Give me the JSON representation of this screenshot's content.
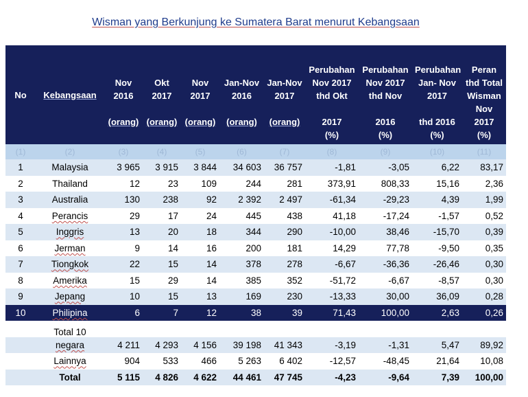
{
  "title": "Wisman yang Berkunjung ke Sumatera Barat menurut Kebangsaan",
  "headers": {
    "no": "No",
    "kebangsaan": "Kebangsaan",
    "nov2016": [
      "Nov",
      "2016",
      "(orang)"
    ],
    "okt2017": [
      "Okt",
      "2017",
      "(orang)"
    ],
    "nov2017": [
      "Nov",
      "2017",
      "(orang)"
    ],
    "jannov2016": [
      "Jan-Nov",
      "2016",
      "(orang)"
    ],
    "jannov2017": [
      "Jan-Nov",
      "2017",
      "(orang)"
    ],
    "chg_okt": [
      "Perubahan",
      "Nov 2017",
      "thd Okt",
      "2017",
      "(%)"
    ],
    "chg_nov": [
      "Perubahan",
      "Nov 2017",
      "thd Nov",
      "2016",
      "(%)"
    ],
    "chg_jannov": [
      "Perubahan",
      "Jan- Nov",
      "2017",
      "thd 2016",
      "(%)"
    ],
    "peran": [
      "Peran",
      "thd Total",
      "Wisman",
      "Nov",
      "2017",
      "(%)"
    ]
  },
  "codes": [
    "(1)",
    "(2)",
    "(3)",
    "(4)",
    "(5)",
    "(6)",
    "(7)",
    "(8)",
    "(9)",
    "(10)",
    "(11)"
  ],
  "rows": [
    {
      "no": "1",
      "name": "Malaysia",
      "nov16": "3 965",
      "okt17": "3 915",
      "nov17": "3 844",
      "jn16": "34 603",
      "jn17": "36 757",
      "c1": "-1,81",
      "c2": "-3,05",
      "c3": "6,22",
      "p": "83,17"
    },
    {
      "no": "2",
      "name": "Thailand",
      "nov16": "12",
      "okt17": "23",
      "nov17": "109",
      "jn16": "244",
      "jn17": "281",
      "c1": "373,91",
      "c2": "808,33",
      "c3": "15,16",
      "p": "2,36"
    },
    {
      "no": "3",
      "name": "Australia",
      "nov16": "130",
      "okt17": "238",
      "nov17": "92",
      "jn16": "2 392",
      "jn17": "2 497",
      "c1": "-61,34",
      "c2": "-29,23",
      "c3": "4,39",
      "p": "1,99"
    },
    {
      "no": "4",
      "name": "Perancis",
      "nov16": "29",
      "okt17": "17",
      "nov17": "24",
      "jn16": "445",
      "jn17": "438",
      "c1": "41,18",
      "c2": "-17,24",
      "c3": "-1,57",
      "p": "0,52"
    },
    {
      "no": "5",
      "name": "Inggris",
      "nov16": "13",
      "okt17": "20",
      "nov17": "18",
      "jn16": "344",
      "jn17": "290",
      "c1": "-10,00",
      "c2": "38,46",
      "c3": "-15,70",
      "p": "0,39"
    },
    {
      "no": "6",
      "name": "Jerman",
      "nov16": "9",
      "okt17": "14",
      "nov17": "16",
      "jn16": "200",
      "jn17": "181",
      "c1": "14,29",
      "c2": "77,78",
      "c3": "-9,50",
      "p": "0,35"
    },
    {
      "no": "7",
      "name": "Tiongkok",
      "nov16": "22",
      "okt17": "15",
      "nov17": "14",
      "jn16": "378",
      "jn17": "278",
      "c1": "-6,67",
      "c2": "-36,36",
      "c3": "-26,46",
      "p": "0,30"
    },
    {
      "no": "8",
      "name": "Amerika",
      "nov16": "15",
      "okt17": "29",
      "nov17": "14",
      "jn16": "385",
      "jn17": "352",
      "c1": "-51,72",
      "c2": "-6,67",
      "c3": "-8,57",
      "p": "0,30"
    },
    {
      "no": "9",
      "name": "Jepang",
      "nov16": "10",
      "okt17": "15",
      "nov17": "13",
      "jn16": "169",
      "jn17": "230",
      "c1": "-13,33",
      "c2": "30,00",
      "c3": "36,09",
      "p": "0,28"
    },
    {
      "no": "10",
      "name": "Philipina",
      "nov16": "6",
      "okt17": "7",
      "nov17": "12",
      "jn16": "38",
      "jn17": "39",
      "c1": "71,43",
      "c2": "100,00",
      "c3": "2,63",
      "p": "0,26"
    }
  ],
  "total10": {
    "name_line1": "Total 10",
    "name_line2": "negara",
    "nov16": "4 211",
    "okt17": "4 293",
    "nov17": "4 156",
    "jn16": "39 198",
    "jn17": "41 343",
    "c1": "-3,19",
    "c2": "-1,31",
    "c3": "5,47",
    "p": "89,92"
  },
  "lainnya": {
    "name": "Lainnya",
    "nov16": "904",
    "okt17": "533",
    "nov17": "466",
    "jn16": "5 263",
    "jn17": "6 402",
    "c1": "-12,57",
    "c2": "-48,45",
    "c3": "21,64",
    "p": "10,08"
  },
  "total": {
    "name": "Total",
    "nov16": "5 115",
    "okt17": "4 826",
    "nov17": "4 622",
    "jn16": "44 461",
    "jn17": "47 745",
    "c1": "-4,23",
    "c2": "-9,64",
    "c3": "7,39",
    "p": "100,00"
  },
  "colors": {
    "header_bg": "#16205a",
    "code_bg": "#bcd4ec",
    "shade_bg": "#dce7f3",
    "title": "#1f3c8c"
  }
}
